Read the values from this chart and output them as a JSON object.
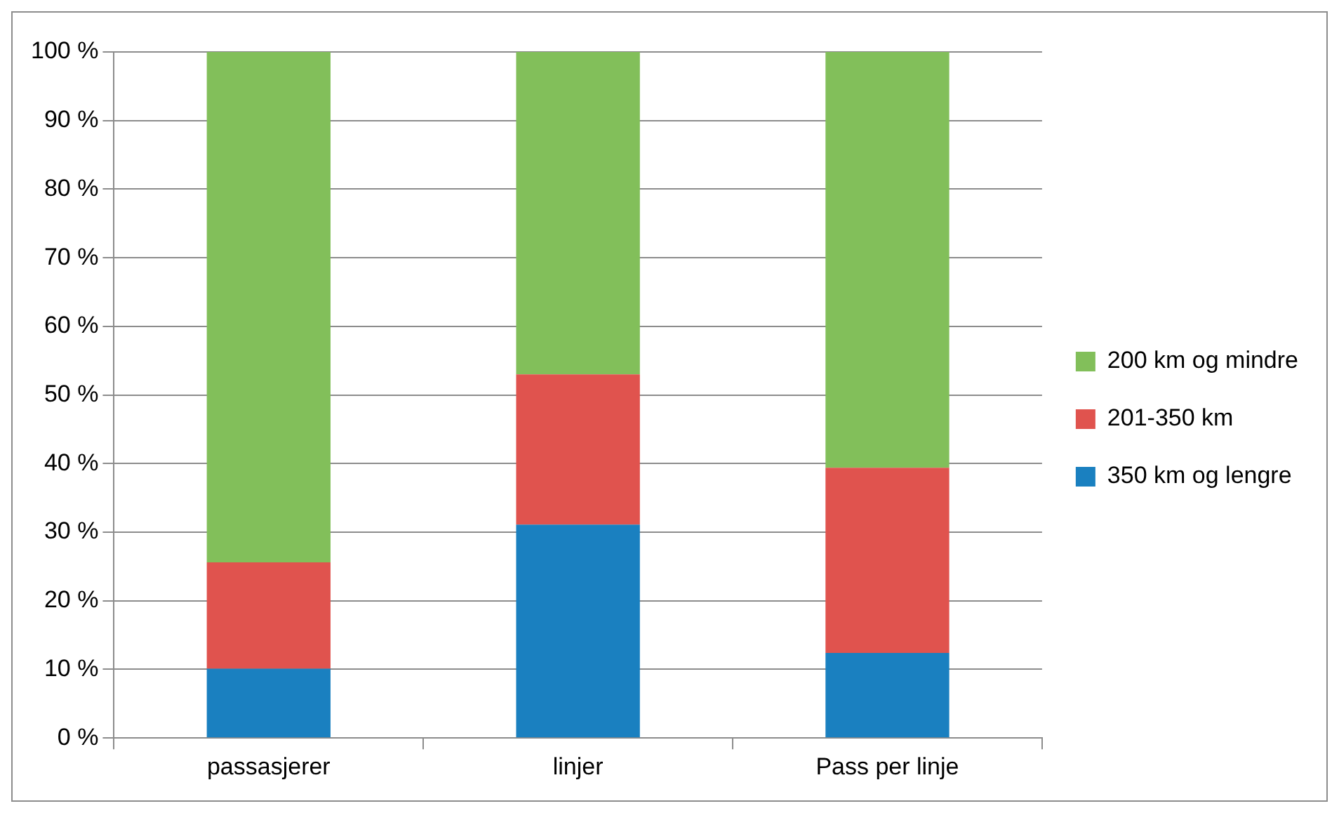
{
  "chart_data": {
    "type": "bar",
    "stacked": true,
    "categories": [
      "passasjerer",
      "linjer",
      "Pass per linje"
    ],
    "series": [
      {
        "name": "350 km og lengre",
        "color": "#1a80c0",
        "values": [
          10.1,
          31.1,
          12.4
        ]
      },
      {
        "name": "201-350 km",
        "color": "#e0534e",
        "values": [
          15.5,
          21.9,
          27.0
        ]
      },
      {
        "name": "200 km og mindre",
        "color": "#82bf5a",
        "values": [
          74.4,
          47.0,
          60.6
        ]
      }
    ],
    "ylim": [
      0,
      100
    ],
    "yticks": [
      {
        "value": 0,
        "label": "0 %"
      },
      {
        "value": 10,
        "label": "10 %"
      },
      {
        "value": 20,
        "label": "20 %"
      },
      {
        "value": 30,
        "label": "30 %"
      },
      {
        "value": 40,
        "label": "40 %"
      },
      {
        "value": 50,
        "label": "50 %"
      },
      {
        "value": 60,
        "label": "60 %"
      },
      {
        "value": 70,
        "label": "70 %"
      },
      {
        "value": 80,
        "label": "80 %"
      },
      {
        "value": 90,
        "label": "90 %"
      },
      {
        "value": 100,
        "label": "100 %"
      }
    ],
    "grid": "y",
    "legend": "right"
  }
}
